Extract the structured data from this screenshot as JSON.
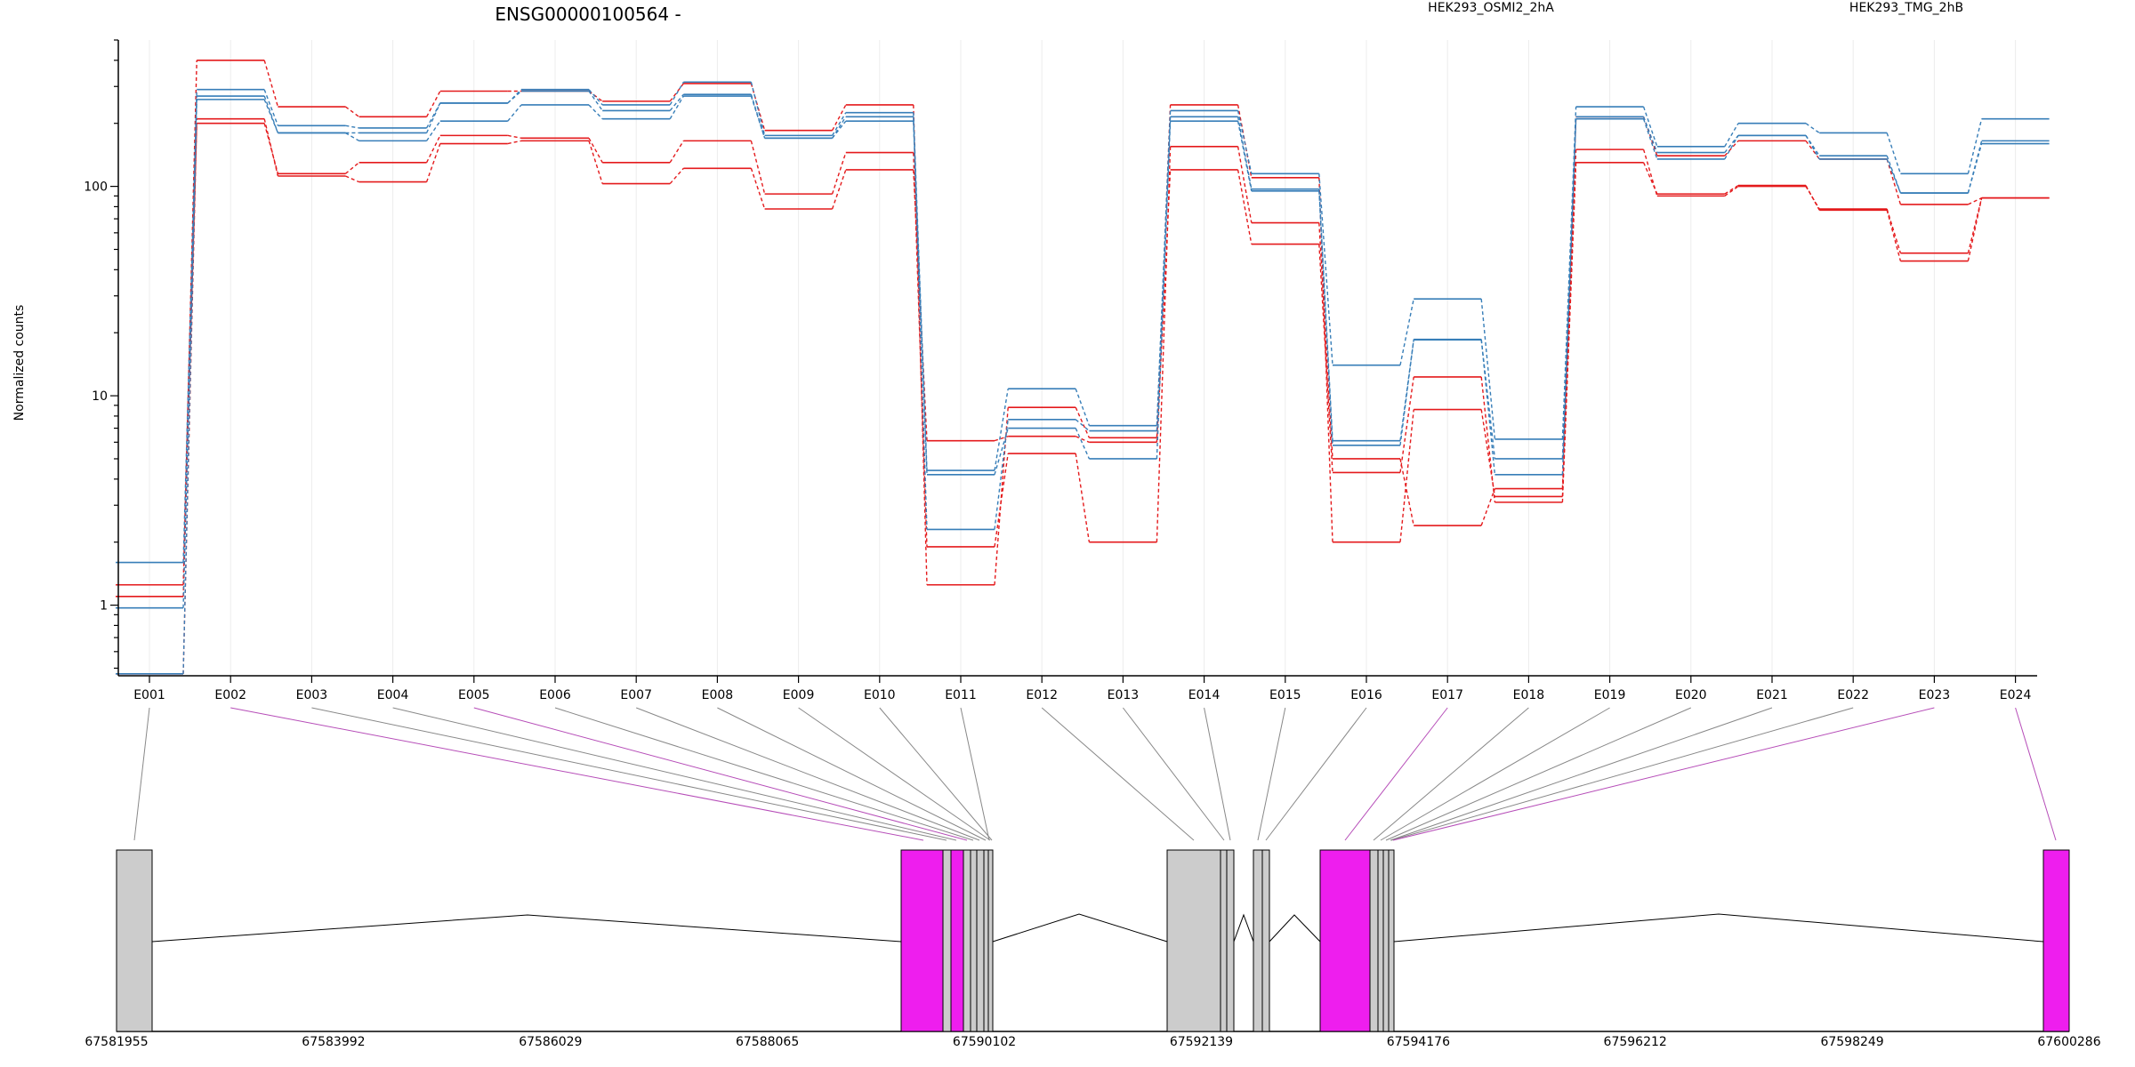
{
  "chart_data": {
    "type": "line",
    "title": "ENSG00000100564 -",
    "ylabel": "Normalized counts",
    "xlabel": "",
    "y_scale": "log",
    "ylim": [
      0.46,
      500
    ],
    "y_ticks": [
      1,
      10,
      100
    ],
    "y_tick_labels": [
      "1",
      "10",
      "100"
    ],
    "grid": "vertical",
    "legend_placement": "top",
    "legend": [
      {
        "label": "HEK293_OSMI2_2hA",
        "color": "#e41a1c"
      },
      {
        "label": "HEK293_TMG_2hB",
        "color": "#377eb8"
      }
    ],
    "categories": [
      "E001",
      "E002",
      "E003",
      "E004",
      "E005",
      "E006",
      "E007",
      "E008",
      "E009",
      "E010",
      "E011",
      "E012",
      "E013",
      "E014",
      "E015",
      "E016",
      "E017",
      "E018",
      "E019",
      "E020",
      "E021",
      "E022",
      "E023",
      "E024"
    ],
    "series": [
      {
        "group": "HEK293_OSMI2_2hA",
        "color": "#e41a1c",
        "values": [
          1.25,
          400,
          240,
          215,
          285,
          285,
          255,
          310,
          185,
          245,
          1.25,
          8.8,
          6.3,
          245,
          110,
          2.0,
          8.6,
          3.3,
          215,
          140,
          165,
          135,
          82,
          88
        ]
      },
      {
        "group": "HEK293_OSMI2_2hA",
        "color": "#e41a1c",
        "values": [
          1.1,
          200,
          115,
          130,
          175,
          170,
          130,
          165,
          92,
          145,
          1.9,
          5.3,
          2.0,
          155,
          67,
          5.0,
          2.4,
          3.6,
          150,
          90,
          100,
          78,
          48,
          88
        ]
      },
      {
        "group": "HEK293_OSMI2_2hA",
        "color": "#e41a1c",
        "values": [
          0.47,
          210,
          112,
          105,
          160,
          165,
          103,
          122,
          78,
          120,
          6.1,
          6.4,
          6.0,
          120,
          53,
          4.3,
          12.3,
          3.1,
          130,
          92,
          101,
          77,
          44,
          88
        ]
      },
      {
        "group": "HEK293_TMG_2hB",
        "color": "#377eb8",
        "values": [
          1.6,
          290,
          195,
          190,
          250,
          290,
          245,
          315,
          175,
          225,
          4.4,
          10.8,
          7.2,
          230,
          115,
          14,
          29,
          6.2,
          240,
          155,
          200,
          180,
          115,
          210
        ]
      },
      {
        "group": "HEK293_TMG_2hB",
        "color": "#377eb8",
        "values": [
          0.97,
          270,
          180,
          180,
          250,
          285,
          230,
          275,
          170,
          215,
          2.3,
          7.7,
          6.8,
          215,
          97,
          6.1,
          18.5,
          5.0,
          215,
          145,
          175,
          140,
          93,
          160
        ]
      },
      {
        "group": "HEK293_TMG_2hB",
        "color": "#377eb8",
        "values": [
          0.47,
          260,
          180,
          165,
          205,
          245,
          210,
          270,
          170,
          205,
          4.2,
          7.0,
          5.0,
          205,
          95,
          5.8,
          18.6,
          4.2,
          210,
          135,
          175,
          135,
          93,
          165
        ]
      }
    ],
    "gene_model": {
      "coordinate_labels": [
        "67581955",
        "67583992",
        "67586029",
        "67588065",
        "67590102",
        "67592139",
        "67594176",
        "67596212",
        "67598249",
        "67600286"
      ],
      "range": [
        67581955,
        67600286
      ],
      "gray_color": "#cccccc",
      "highlight_color": "#ee1eee"
    }
  }
}
